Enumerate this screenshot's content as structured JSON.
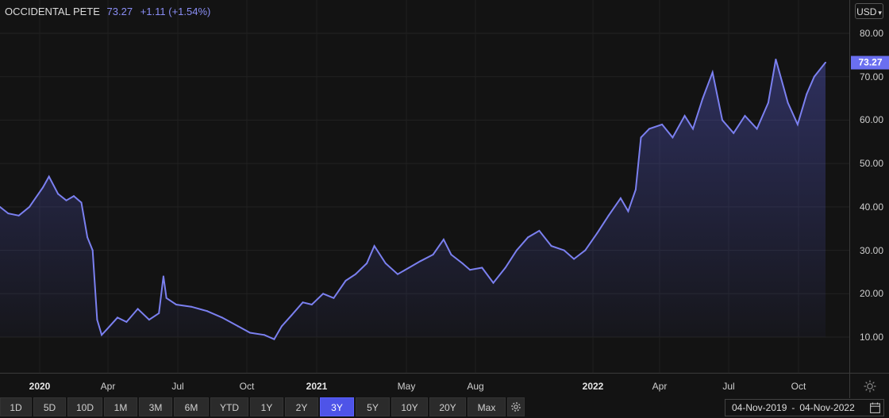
{
  "legend": {
    "name": "OCCIDENTAL PETE",
    "price": "73.27",
    "change": "+1.11 (+1.54%)"
  },
  "currency": "USD",
  "last_price_label": "73.27",
  "ranges": [
    "1D",
    "5D",
    "10D",
    "1M",
    "3M",
    "6M",
    "YTD",
    "1Y",
    "2Y",
    "3Y",
    "5Y",
    "10Y",
    "20Y",
    "Max"
  ],
  "active_range": "3Y",
  "date_range": {
    "from": "04-Nov-2019",
    "to": "04-Nov-2022"
  },
  "colors": {
    "line": "#7b80f0",
    "background": "#131313",
    "active_button": "#4e54e8"
  },
  "chart_data": {
    "type": "area",
    "y_ticks": [
      "10.00",
      "20.00",
      "30.00",
      "40.00",
      "50.00",
      "60.00",
      "70.00",
      "80.00"
    ],
    "x_ticks": [
      {
        "label": "2020",
        "year": true
      },
      {
        "label": "Apr",
        "year": false
      },
      {
        "label": "Jul",
        "year": false
      },
      {
        "label": "Oct",
        "year": false
      },
      {
        "label": "2021",
        "year": true
      },
      {
        "label": "May",
        "year": false
      },
      {
        "label": "Aug",
        "year": false
      },
      {
        "label": "2022",
        "year": true
      },
      {
        "label": "Apr",
        "year": false
      },
      {
        "label": "Jul",
        "year": false
      },
      {
        "label": "Oct",
        "year": false
      }
    ],
    "ylim": [
      0,
      85
    ],
    "grid": true,
    "series": [
      {
        "values": [
          [
            "2019-11-04",
            40.0
          ],
          [
            "2019-11-15",
            38.5
          ],
          [
            "2019-11-29",
            38.0
          ],
          [
            "2019-12-13",
            40.0
          ],
          [
            "2019-12-31",
            44.5
          ],
          [
            "2020-01-08",
            47.0
          ],
          [
            "2020-01-20",
            43.0
          ],
          [
            "2020-01-31",
            41.5
          ],
          [
            "2020-02-10",
            42.5
          ],
          [
            "2020-02-20",
            41.0
          ],
          [
            "2020-02-28",
            33.0
          ],
          [
            "2020-03-06",
            30.0
          ],
          [
            "2020-03-12",
            14.0
          ],
          [
            "2020-03-18",
            10.5
          ],
          [
            "2020-03-26",
            12.0
          ],
          [
            "2020-04-08",
            14.5
          ],
          [
            "2020-04-20",
            13.5
          ],
          [
            "2020-05-05",
            16.5
          ],
          [
            "2020-05-20",
            14.0
          ],
          [
            "2020-06-02",
            15.5
          ],
          [
            "2020-06-08",
            24.0
          ],
          [
            "2020-06-12",
            19.0
          ],
          [
            "2020-06-25",
            17.5
          ],
          [
            "2020-07-15",
            17.0
          ],
          [
            "2020-08-05",
            16.0
          ],
          [
            "2020-08-25",
            14.5
          ],
          [
            "2020-09-15",
            12.5
          ],
          [
            "2020-10-01",
            11.0
          ],
          [
            "2020-10-20",
            10.5
          ],
          [
            "2020-11-02",
            9.5
          ],
          [
            "2020-11-12",
            12.5
          ],
          [
            "2020-11-25",
            15.0
          ],
          [
            "2020-12-10",
            18.0
          ],
          [
            "2020-12-22",
            17.5
          ],
          [
            "2021-01-06",
            20.0
          ],
          [
            "2021-01-20",
            19.0
          ],
          [
            "2021-02-05",
            23.0
          ],
          [
            "2021-02-18",
            24.5
          ],
          [
            "2021-03-05",
            27.0
          ],
          [
            "2021-03-15",
            31.0
          ],
          [
            "2021-03-30",
            27.0
          ],
          [
            "2021-04-15",
            24.5
          ],
          [
            "2021-04-30",
            26.0
          ],
          [
            "2021-05-15",
            27.5
          ],
          [
            "2021-06-01",
            29.0
          ],
          [
            "2021-06-15",
            32.5
          ],
          [
            "2021-06-25",
            29.0
          ],
          [
            "2021-07-10",
            27.0
          ],
          [
            "2021-07-20",
            25.5
          ],
          [
            "2021-08-05",
            26.0
          ],
          [
            "2021-08-20",
            22.5
          ],
          [
            "2021-09-05",
            26.0
          ],
          [
            "2021-09-20",
            30.0
          ],
          [
            "2021-10-05",
            33.0
          ],
          [
            "2021-10-20",
            34.5
          ],
          [
            "2021-11-05",
            31.0
          ],
          [
            "2021-11-22",
            30.0
          ],
          [
            "2021-12-05",
            28.0
          ],
          [
            "2021-12-20",
            30.0
          ],
          [
            "2022-01-05",
            34.0
          ],
          [
            "2022-01-20",
            38.0
          ],
          [
            "2022-02-05",
            42.0
          ],
          [
            "2022-02-15",
            39.0
          ],
          [
            "2022-02-25",
            44.0
          ],
          [
            "2022-03-04",
            56.0
          ],
          [
            "2022-03-15",
            58.0
          ],
          [
            "2022-04-01",
            59.0
          ],
          [
            "2022-04-15",
            56.0
          ],
          [
            "2022-05-01",
            61.0
          ],
          [
            "2022-05-12",
            58.0
          ],
          [
            "2022-05-25",
            65.0
          ],
          [
            "2022-06-07",
            71.0
          ],
          [
            "2022-06-20",
            60.0
          ],
          [
            "2022-07-05",
            57.0
          ],
          [
            "2022-07-20",
            61.0
          ],
          [
            "2022-08-05",
            58.0
          ],
          [
            "2022-08-20",
            64.0
          ],
          [
            "2022-08-30",
            74.0
          ],
          [
            "2022-09-15",
            64.0
          ],
          [
            "2022-09-28",
            59.0
          ],
          [
            "2022-10-10",
            66.0
          ],
          [
            "2022-10-20",
            70.0
          ],
          [
            "2022-11-04",
            73.27
          ]
        ]
      }
    ]
  }
}
